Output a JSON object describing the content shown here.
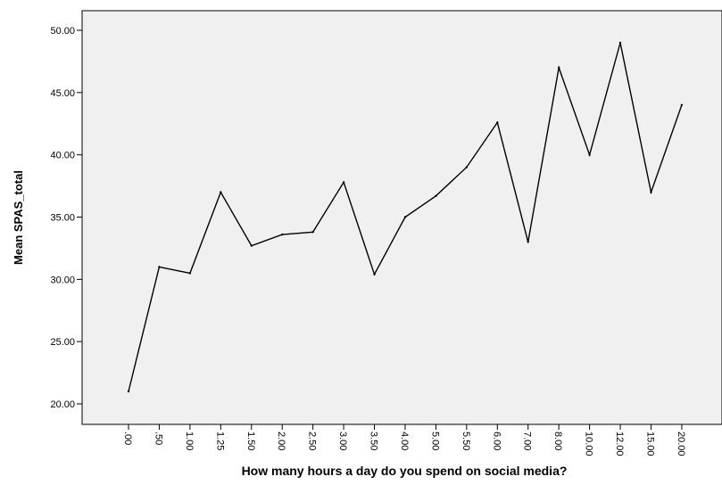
{
  "chart_data": {
    "type": "line",
    "xlabel": "How many hours a day do you spend on social media?",
    "ylabel": "Mean SPAS_total",
    "categories": [
      ".00",
      ".50",
      "1.00",
      "1.25",
      "1.50",
      "2.00",
      "2.50",
      "3.00",
      "3.50",
      "4.00",
      "5.00",
      "5.50",
      "6.00",
      "7.00",
      "8.00",
      "10.00",
      "12.00",
      "15.00",
      "20.00"
    ],
    "series": [
      {
        "values": [
          21.0,
          31.0,
          30.5,
          37.0,
          32.7,
          33.6,
          33.8,
          37.8,
          30.4,
          35.0,
          36.7,
          39.0,
          42.6,
          33.0,
          47.0,
          40.0,
          49.0,
          37.0,
          44.0
        ]
      }
    ],
    "yticks": [
      "20.00",
      "25.00",
      "30.00",
      "35.00",
      "40.00",
      "45.00",
      "50.00"
    ],
    "ylim": [
      19.25,
      51.5
    ],
    "grid": false,
    "colors": {
      "plot_background": "#f0f0f0",
      "line": "#000000"
    }
  }
}
